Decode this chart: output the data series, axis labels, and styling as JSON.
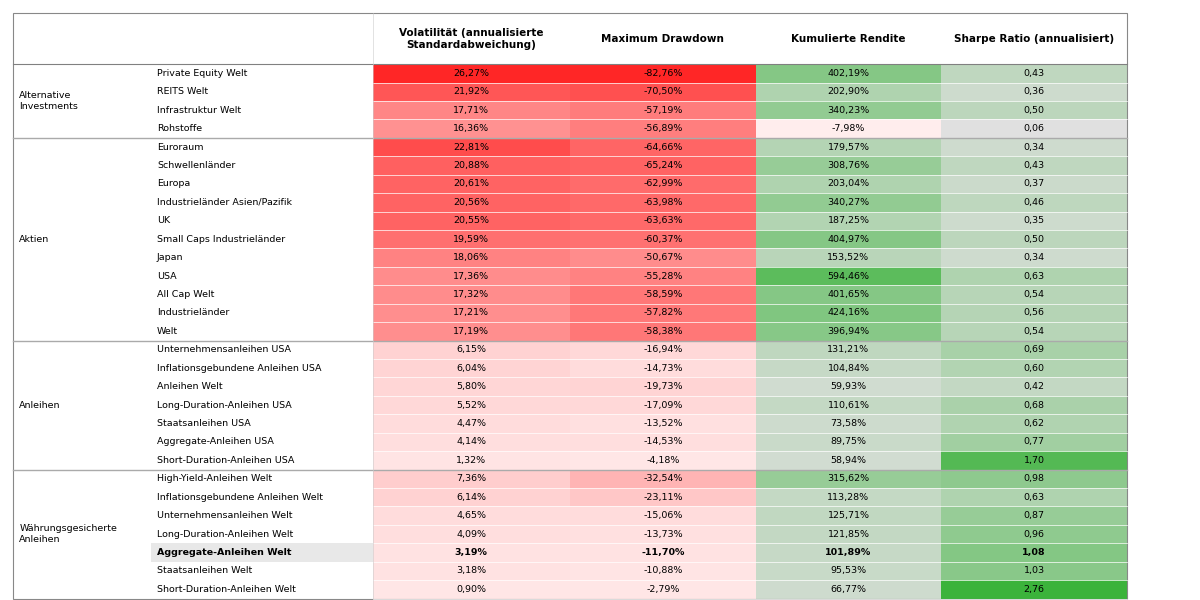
{
  "col_headers": [
    "Volatilität (annualisierte\nStandardabweichung)",
    "Maximum Drawdown",
    "Kumulierte Rendite",
    "Sharpe Ratio (annualisiert)"
  ],
  "rows": [
    {
      "category": "Alternative\nInvestments",
      "subcategory": "Private Equity Welt",
      "vol": "26,27%",
      "drawdown": "-82,76%",
      "rendite": "402,19%",
      "sharpe": "0,43",
      "bold": false,
      "highlight": false,
      "vol_color_val": 1.0,
      "drawdown_color_val": 1.0,
      "rendite_color_val": 0.55,
      "sharpe_color_val": 0.2,
      "section_end": false
    },
    {
      "category": "",
      "subcategory": "REITS Welt",
      "vol": "21,92%",
      "drawdown": "-70,50%",
      "rendite": "202,90%",
      "sharpe": "0,36",
      "bold": false,
      "highlight": false,
      "vol_color_val": 0.75,
      "drawdown_color_val": 0.78,
      "rendite_color_val": 0.3,
      "sharpe_color_val": 0.12,
      "section_end": false
    },
    {
      "category": "",
      "subcategory": "Infrastruktur Welt",
      "vol": "17,71%",
      "drawdown": "-57,19%",
      "rendite": "340,23%",
      "sharpe": "0,50",
      "bold": false,
      "highlight": false,
      "vol_color_val": 0.5,
      "drawdown_color_val": 0.55,
      "rendite_color_val": 0.47,
      "sharpe_color_val": 0.22,
      "section_end": false
    },
    {
      "category": "",
      "subcategory": "Rohstoffe",
      "vol": "16,36%",
      "drawdown": "-56,89%",
      "rendite": "-7,98%",
      "sharpe": "0,06",
      "bold": false,
      "highlight": false,
      "vol_color_val": 0.44,
      "drawdown_color_val": 0.54,
      "rendite_color_val": -0.03,
      "sharpe_color_val": 0.0,
      "section_end": true
    },
    {
      "category": "Aktien",
      "subcategory": "Euroraum",
      "vol": "22,81%",
      "drawdown": "-64,66%",
      "rendite": "179,57%",
      "sharpe": "0,34",
      "bold": false,
      "highlight": false,
      "vol_color_val": 0.8,
      "drawdown_color_val": 0.67,
      "rendite_color_val": 0.27,
      "sharpe_color_val": 0.11,
      "section_end": false
    },
    {
      "category": "",
      "subcategory": "Schwellenländer",
      "vol": "20,88%",
      "drawdown": "-65,24%",
      "rendite": "308,76%",
      "sharpe": "0,43",
      "bold": false,
      "highlight": false,
      "vol_color_val": 0.7,
      "drawdown_color_val": 0.68,
      "rendite_color_val": 0.44,
      "sharpe_color_val": 0.2,
      "section_end": false
    },
    {
      "category": "",
      "subcategory": "Europa",
      "vol": "20,61%",
      "drawdown": "-62,99%",
      "rendite": "203,04%",
      "sharpe": "0,37",
      "bold": false,
      "highlight": false,
      "vol_color_val": 0.68,
      "drawdown_color_val": 0.64,
      "rendite_color_val": 0.3,
      "sharpe_color_val": 0.13,
      "section_end": false
    },
    {
      "category": "",
      "subcategory": "Industrieländer Asien/Pazifik",
      "vol": "20,56%",
      "drawdown": "-63,98%",
      "rendite": "340,27%",
      "sharpe": "0,46",
      "bold": false,
      "highlight": false,
      "vol_color_val": 0.68,
      "drawdown_color_val": 0.65,
      "rendite_color_val": 0.47,
      "sharpe_color_val": 0.21,
      "section_end": false
    },
    {
      "category": "",
      "subcategory": "UK",
      "vol": "20,55%",
      "drawdown": "-63,63%",
      "rendite": "187,25%",
      "sharpe": "0,35",
      "bold": false,
      "highlight": false,
      "vol_color_val": 0.68,
      "drawdown_color_val": 0.65,
      "rendite_color_val": 0.28,
      "sharpe_color_val": 0.12,
      "section_end": false
    },
    {
      "category": "",
      "subcategory": "Small Caps Industrieländer",
      "vol": "19,59%",
      "drawdown": "-60,37%",
      "rendite": "404,97%",
      "sharpe": "0,50",
      "bold": false,
      "highlight": false,
      "vol_color_val": 0.62,
      "drawdown_color_val": 0.61,
      "rendite_color_val": 0.55,
      "sharpe_color_val": 0.22,
      "section_end": false
    },
    {
      "category": "",
      "subcategory": "Japan",
      "vol": "18,06%",
      "drawdown": "-50,67%",
      "rendite": "153,52%",
      "sharpe": "0,34",
      "bold": false,
      "highlight": false,
      "vol_color_val": 0.52,
      "drawdown_color_val": 0.47,
      "rendite_color_val": 0.24,
      "sharpe_color_val": 0.11,
      "section_end": false
    },
    {
      "category": "",
      "subcategory": "USA",
      "vol": "17,36%",
      "drawdown": "-55,28%",
      "rendite": "594,46%",
      "sharpe": "0,63",
      "bold": false,
      "highlight": false,
      "vol_color_val": 0.47,
      "drawdown_color_val": 0.52,
      "rendite_color_val": 0.8,
      "sharpe_color_val": 0.3,
      "section_end": false
    },
    {
      "category": "",
      "subcategory": "All Cap Welt",
      "vol": "17,32%",
      "drawdown": "-58,59%",
      "rendite": "401,65%",
      "sharpe": "0,54",
      "bold": false,
      "highlight": false,
      "vol_color_val": 0.47,
      "drawdown_color_val": 0.58,
      "rendite_color_val": 0.55,
      "sharpe_color_val": 0.25,
      "section_end": false
    },
    {
      "category": "",
      "subcategory": "Industrieländer",
      "vol": "17,21%",
      "drawdown": "-57,82%",
      "rendite": "424,16%",
      "sharpe": "0,56",
      "bold": false,
      "highlight": false,
      "vol_color_val": 0.46,
      "drawdown_color_val": 0.57,
      "rendite_color_val": 0.58,
      "sharpe_color_val": 0.26,
      "section_end": false
    },
    {
      "category": "",
      "subcategory": "Welt",
      "vol": "17,19%",
      "drawdown": "-58,38%",
      "rendite": "396,94%",
      "sharpe": "0,54",
      "bold": false,
      "highlight": false,
      "vol_color_val": 0.46,
      "drawdown_color_val": 0.58,
      "rendite_color_val": 0.54,
      "sharpe_color_val": 0.25,
      "section_end": true
    },
    {
      "category": "Anleihen",
      "subcategory": "Unternehmensanleihen USA",
      "vol": "6,15%",
      "drawdown": "-16,94%",
      "rendite": "131,21%",
      "sharpe": "0,69",
      "bold": false,
      "highlight": false,
      "vol_color_val": 0.1,
      "drawdown_color_val": 0.07,
      "rendite_color_val": 0.2,
      "sharpe_color_val": 0.34,
      "section_end": false
    },
    {
      "category": "",
      "subcategory": "Inflationsgebundene Anleihen USA",
      "vol": "6,04%",
      "drawdown": "-14,73%",
      "rendite": "104,84%",
      "sharpe": "0,60",
      "bold": false,
      "highlight": false,
      "vol_color_val": 0.09,
      "drawdown_color_val": 0.05,
      "rendite_color_val": 0.16,
      "sharpe_color_val": 0.28,
      "section_end": false
    },
    {
      "category": "",
      "subcategory": "Anleihen Welt",
      "vol": "5,80%",
      "drawdown": "-19,73%",
      "rendite": "59,93%",
      "sharpe": "0,42",
      "bold": false,
      "highlight": false,
      "vol_color_val": 0.08,
      "drawdown_color_val": 0.09,
      "rendite_color_val": 0.1,
      "sharpe_color_val": 0.18,
      "section_end": false
    },
    {
      "category": "",
      "subcategory": "Long-Duration-Anleihen USA",
      "vol": "5,52%",
      "drawdown": "-17,09%",
      "rendite": "110,61%",
      "sharpe": "0,68",
      "bold": false,
      "highlight": false,
      "vol_color_val": 0.07,
      "drawdown_color_val": 0.07,
      "rendite_color_val": 0.17,
      "sharpe_color_val": 0.33,
      "section_end": false
    },
    {
      "category": "",
      "subcategory": "Staatsanleihen USA",
      "vol": "4,47%",
      "drawdown": "-13,52%",
      "rendite": "73,58%",
      "sharpe": "0,62",
      "bold": false,
      "highlight": false,
      "vol_color_val": 0.05,
      "drawdown_color_val": 0.03,
      "rendite_color_val": 0.12,
      "sharpe_color_val": 0.29,
      "section_end": false
    },
    {
      "category": "",
      "subcategory": "Aggregate-Anleihen USA",
      "vol": "4,14%",
      "drawdown": "-14,53%",
      "rendite": "89,75%",
      "sharpe": "0,77",
      "bold": false,
      "highlight": false,
      "vol_color_val": 0.04,
      "drawdown_color_val": 0.04,
      "rendite_color_val": 0.14,
      "sharpe_color_val": 0.38,
      "section_end": false
    },
    {
      "category": "",
      "subcategory": "Short-Duration-Anleihen USA",
      "vol": "1,32%",
      "drawdown": "-4,18%",
      "rendite": "58,94%",
      "sharpe": "1,70",
      "bold": false,
      "highlight": false,
      "vol_color_val": 0.01,
      "drawdown_color_val": 0.0,
      "rendite_color_val": 0.09,
      "sharpe_color_val": 0.85,
      "section_end": true
    },
    {
      "category": "Währungsgesicherte\nAnleihen",
      "subcategory": "High-Yield-Anleihen Welt",
      "vol": "7,36%",
      "drawdown": "-32,54%",
      "rendite": "315,62%",
      "sharpe": "0,98",
      "bold": false,
      "highlight": false,
      "vol_color_val": 0.13,
      "drawdown_color_val": 0.26,
      "rendite_color_val": 0.44,
      "sharpe_color_val": 0.5,
      "section_end": false
    },
    {
      "category": "",
      "subcategory": "Inflationsgebundene Anleihen Welt",
      "vol": "6,14%",
      "drawdown": "-23,11%",
      "rendite": "113,28%",
      "sharpe": "0,63",
      "bold": false,
      "highlight": false,
      "vol_color_val": 0.1,
      "drawdown_color_val": 0.16,
      "rendite_color_val": 0.17,
      "sharpe_color_val": 0.3,
      "section_end": false
    },
    {
      "category": "",
      "subcategory": "Unternehmensanleihen Welt",
      "vol": "4,65%",
      "drawdown": "-15,06%",
      "rendite": "125,71%",
      "sharpe": "0,87",
      "bold": false,
      "highlight": false,
      "vol_color_val": 0.05,
      "drawdown_color_val": 0.05,
      "rendite_color_val": 0.19,
      "sharpe_color_val": 0.44,
      "section_end": false
    },
    {
      "category": "",
      "subcategory": "Long-Duration-Anleihen Welt",
      "vol": "4,09%",
      "drawdown": "-13,73%",
      "rendite": "121,85%",
      "sharpe": "0,96",
      "bold": false,
      "highlight": false,
      "vol_color_val": 0.04,
      "drawdown_color_val": 0.03,
      "rendite_color_val": 0.18,
      "sharpe_color_val": 0.49,
      "section_end": false
    },
    {
      "category": "",
      "subcategory": "Aggregate-Anleihen Welt",
      "vol": "3,19%",
      "drawdown": "-11,70%",
      "rendite": "101,89%",
      "sharpe": "1,08",
      "bold": true,
      "highlight": true,
      "vol_color_val": 0.02,
      "drawdown_color_val": 0.02,
      "rendite_color_val": 0.16,
      "sharpe_color_val": 0.56,
      "section_end": false
    },
    {
      "category": "",
      "subcategory": "Staatsanleihen Welt",
      "vol": "3,18%",
      "drawdown": "-10,88%",
      "rendite": "95,53%",
      "sharpe": "1,03",
      "bold": false,
      "highlight": false,
      "vol_color_val": 0.02,
      "drawdown_color_val": 0.01,
      "rendite_color_val": 0.15,
      "sharpe_color_val": 0.53,
      "section_end": false
    },
    {
      "category": "",
      "subcategory": "Short-Duration-Anleihen Welt",
      "vol": "0,90%",
      "drawdown": "-2,79%",
      "rendite": "66,77%",
      "sharpe": "2,76",
      "bold": false,
      "highlight": false,
      "vol_color_val": 0.0,
      "drawdown_color_val": 0.0,
      "rendite_color_val": 0.11,
      "sharpe_color_val": 1.0,
      "section_end": false
    }
  ]
}
